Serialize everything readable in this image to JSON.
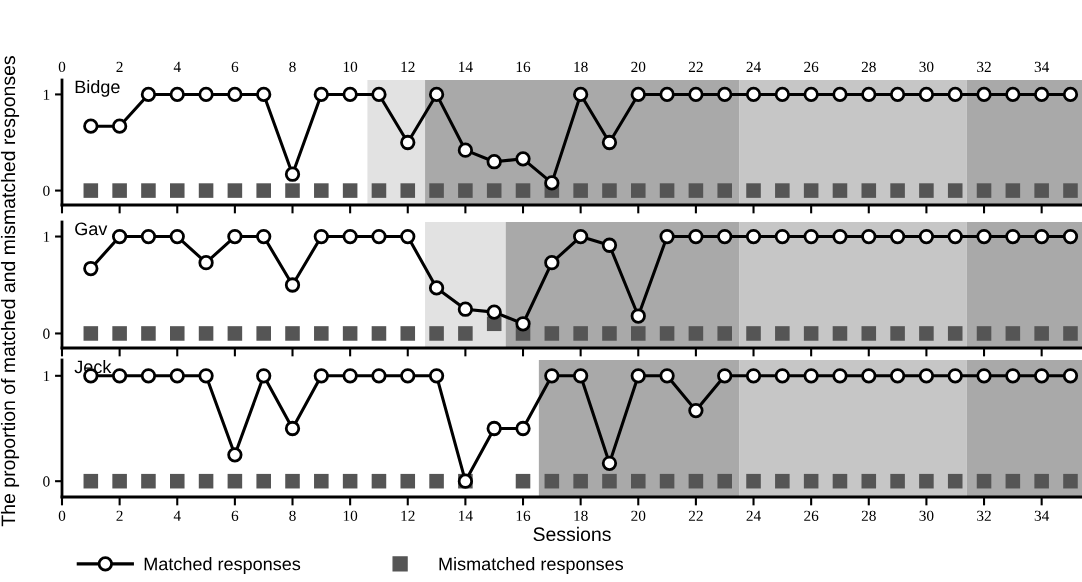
{
  "chart_data": [
    {
      "type": "line",
      "title": "Bidge",
      "x": [
        1,
        2,
        3,
        4,
        5,
        6,
        7,
        8,
        9,
        10,
        11,
        12,
        13,
        14,
        15,
        16,
        17,
        18,
        19,
        20,
        21,
        22,
        23,
        24,
        25,
        26,
        27,
        28,
        29,
        30,
        31,
        32,
        33,
        34,
        35
      ],
      "xlim": [
        0,
        35.4
      ],
      "xticks": [
        0,
        2,
        4,
        6,
        8,
        10,
        12,
        14,
        16,
        18,
        20,
        22,
        24,
        26,
        28,
        30,
        32,
        34
      ],
      "x2lim": [
        0,
        35.4
      ],
      "x2ticks": [
        0,
        2,
        4,
        6,
        8,
        10,
        12,
        14,
        16,
        18,
        20,
        22,
        24,
        26,
        28,
        30,
        32,
        34
      ],
      "tick_labels": "y",
      "ylim": [
        -0.15,
        1.15
      ],
      "yticks": [
        0,
        1
      ],
      "marker": "circle",
      "grid": false,
      "legend": false,
      "series": [
        {
          "color": "#000000",
          "values": [
            0.67,
            0.67,
            1,
            1,
            1,
            1,
            1,
            0.17,
            1,
            1,
            1,
            0.5,
            1,
            0.42,
            0.3,
            0.33,
            0.08,
            1,
            0.5,
            1,
            1,
            1,
            1,
            1,
            1,
            1,
            1,
            1,
            1,
            1,
            1,
            1,
            1,
            1,
            1
          ]
        },
        {
          "type": "scatter",
          "marker": "square",
          "color": "#555555",
          "values": [
            0,
            0,
            0,
            0,
            0,
            0,
            0,
            0,
            0,
            0,
            0,
            0,
            0,
            0,
            0,
            0,
            0,
            0,
            0,
            0,
            0,
            0,
            0,
            0,
            0,
            0,
            0,
            0,
            0,
            0,
            0,
            0,
            0,
            0,
            0
          ]
        }
      ],
      "bands": [
        {
          "axis": "x",
          "from": 10.6,
          "to": 12.6,
          "color": "#e2e2e2"
        },
        {
          "axis": "x",
          "from": 12.6,
          "to": 23.5,
          "color": "#a9a9a9"
        },
        {
          "axis": "x",
          "from": 23.5,
          "to": 31.4,
          "color": "#c6c6c6"
        },
        {
          "axis": "x",
          "from": 31.4,
          "to": 35.4,
          "color": "#a9a9a9"
        }
      ]
    },
    {
      "type": "line",
      "title": "Gav",
      "ylabel": "The proportion of matched and mismatched responses",
      "x": [
        1,
        2,
        3,
        4,
        5,
        6,
        7,
        8,
        9,
        10,
        11,
        12,
        13,
        14,
        15,
        16,
        17,
        18,
        19,
        20,
        21,
        22,
        23,
        24,
        25,
        26,
        27,
        28,
        29,
        30,
        31,
        32,
        33,
        34,
        35
      ],
      "xlim": [
        0,
        35.4
      ],
      "xticks": [
        0,
        2,
        4,
        6,
        8,
        10,
        12,
        14,
        16,
        18,
        20,
        22,
        24,
        26,
        28,
        30,
        32,
        34
      ],
      "tick_labels": "y",
      "ylim": [
        -0.15,
        1.15
      ],
      "yticks": [
        0,
        1
      ],
      "marker": "circle",
      "grid": false,
      "legend": false,
      "series": [
        {
          "color": "#000000",
          "values": [
            0.67,
            1,
            1,
            1,
            0.73,
            1,
            1,
            0.5,
            1,
            1,
            1,
            1,
            0.47,
            0.25,
            0.22,
            0.1,
            0.73,
            1,
            0.91,
            0.18,
            1,
            1,
            1,
            1,
            1,
            1,
            1,
            1,
            1,
            1,
            1,
            1,
            1,
            1,
            1
          ]
        },
        {
          "type": "scatter",
          "marker": "square",
          "color": "#555555",
          "values": [
            0,
            0,
            0,
            0,
            0,
            0,
            0,
            0,
            0,
            0,
            0,
            0,
            0,
            0,
            0.1,
            0,
            0,
            0,
            0,
            0,
            0,
            0,
            0,
            0,
            0,
            0,
            0,
            0,
            0,
            0,
            0,
            0,
            0,
            0,
            0
          ]
        }
      ],
      "bands": [
        {
          "axis": "x",
          "from": 12.6,
          "to": 15.4,
          "color": "#e2e2e2"
        },
        {
          "axis": "x",
          "from": 15.4,
          "to": 23.5,
          "color": "#a9a9a9"
        },
        {
          "axis": "x",
          "from": 23.5,
          "to": 31.4,
          "color": "#c6c6c6"
        },
        {
          "axis": "x",
          "from": 31.4,
          "to": 35.4,
          "color": "#a9a9a9"
        }
      ]
    },
    {
      "type": "line",
      "title": "Jeck",
      "xlabel": "Sessions",
      "x": [
        1,
        2,
        3,
        4,
        5,
        6,
        7,
        8,
        9,
        10,
        11,
        12,
        13,
        14,
        15,
        16,
        17,
        18,
        19,
        20,
        21,
        22,
        23,
        24,
        25,
        26,
        27,
        28,
        29,
        30,
        31,
        32,
        33,
        34,
        35
      ],
      "xlim": [
        0,
        35.4
      ],
      "xticks": [
        0,
        2,
        4,
        6,
        8,
        10,
        12,
        14,
        16,
        18,
        20,
        22,
        24,
        26,
        28,
        30,
        32,
        34
      ],
      "ylim": [
        -0.15,
        1.15
      ],
      "yticks": [
        0,
        1
      ],
      "marker": "circle",
      "grid": false,
      "legend": "bottom",
      "series": [
        {
          "name": "Matched responses",
          "color": "#000000",
          "values": [
            1,
            1,
            1,
            1,
            1,
            0.25,
            1,
            0.5,
            1,
            1,
            1,
            1,
            1,
            0,
            0.5,
            0.5,
            1,
            1,
            0.17,
            1,
            1,
            0.67,
            1,
            1,
            1,
            1,
            1,
            1,
            1,
            1,
            1,
            1,
            1,
            1,
            1
          ]
        },
        {
          "type": "scatter",
          "name": "Mismatched responses",
          "marker": "square",
          "color": "#555555",
          "values": [
            0,
            0,
            0,
            0,
            0,
            0,
            0,
            0,
            0,
            0,
            0,
            0,
            0,
            0,
            null,
            0,
            0,
            0,
            0,
            0,
            0,
            0,
            0,
            0,
            0,
            0,
            0,
            0,
            0,
            0,
            0,
            0,
            0,
            0,
            0
          ]
        }
      ],
      "bands": [
        {
          "axis": "x",
          "from": 16.55,
          "to": 23.5,
          "color": "#a9a9a9"
        },
        {
          "axis": "x",
          "from": 23.5,
          "to": 31.4,
          "color": "#c6c6c6"
        },
        {
          "axis": "x",
          "from": 31.4,
          "to": 35.4,
          "color": "#a9a9a9"
        }
      ]
    }
  ]
}
